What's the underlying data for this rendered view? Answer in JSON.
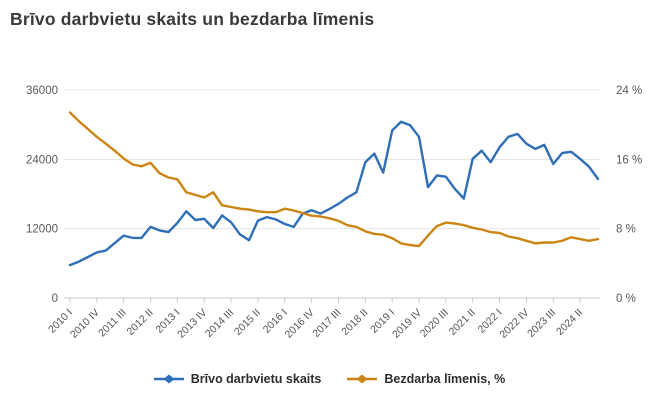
{
  "title": "Brīvo darbvietu skaits un bezdarba līmenis",
  "colors": {
    "vacancies_line": "#2f6fb7",
    "unemployment_line": "#cc8512",
    "gridline": "#e4e4e4",
    "axis_line": "#c8c8c8",
    "axis_text": "#595959",
    "title_text": "#3a3a3a",
    "background": "#ffffff"
  },
  "chart_data": {
    "type": "line",
    "title": "Brīvo darbvietu skaits un bezdarba līmenis",
    "grid": true,
    "legend_position": "bottom",
    "x_ticks": [
      {
        "label": "2010 I",
        "index": 0
      },
      {
        "label": "2010 IV",
        "index": 3
      },
      {
        "label": "2011 III",
        "index": 6
      },
      {
        "label": "2012 II",
        "index": 9
      },
      {
        "label": "2013 I",
        "index": 12
      },
      {
        "label": "2013 IV",
        "index": 15
      },
      {
        "label": "2014 III",
        "index": 18
      },
      {
        "label": "2015 II",
        "index": 21
      },
      {
        "label": "2016 I",
        "index": 24
      },
      {
        "label": "2016 IV",
        "index": 27
      },
      {
        "label": "2017 III",
        "index": 30
      },
      {
        "label": "2018 II",
        "index": 33
      },
      {
        "label": "2019 I",
        "index": 36
      },
      {
        "label": "2019 IV",
        "index": 39
      },
      {
        "label": "2020 III",
        "index": 42
      },
      {
        "label": "2021 II",
        "index": 45
      },
      {
        "label": "2022 I",
        "index": 48
      },
      {
        "label": "2022 IV",
        "index": 51
      },
      {
        "label": "2023 III",
        "index": 54
      },
      {
        "label": "2024 II",
        "index": 57
      }
    ],
    "categories": [
      "2010 I",
      "2010 II",
      "2010 III",
      "2010 IV",
      "2011 I",
      "2011 II",
      "2011 III",
      "2011 IV",
      "2012 I",
      "2012 II",
      "2012 III",
      "2012 IV",
      "2013 I",
      "2013 II",
      "2013 III",
      "2013 IV",
      "2014 I",
      "2014 II",
      "2014 III",
      "2014 IV",
      "2015 I",
      "2015 II",
      "2015 III",
      "2015 IV",
      "2016 I",
      "2016 II",
      "2016 III",
      "2016 IV",
      "2017 I",
      "2017 II",
      "2017 III",
      "2017 IV",
      "2018 I",
      "2018 II",
      "2018 III",
      "2018 IV",
      "2019 I",
      "2019 II",
      "2019 III",
      "2019 IV",
      "2020 I",
      "2020 II",
      "2020 III",
      "2020 IV",
      "2021 I",
      "2021 II",
      "2021 III",
      "2021 IV",
      "2022 I",
      "2022 II",
      "2022 III",
      "2022 IV",
      "2023 I",
      "2023 II",
      "2023 III",
      "2023 IV",
      "2024 I",
      "2024 II",
      "2024 III",
      "2024 IV"
    ],
    "series": [
      {
        "name": "Brīvo darbvietu skaits",
        "axis": "left",
        "color": "#2f6fb7",
        "values": [
          5700,
          6300,
          7100,
          7900,
          8200,
          9500,
          10800,
          10400,
          10400,
          12300,
          11700,
          11400,
          13000,
          15000,
          13500,
          13700,
          12100,
          14300,
          13100,
          11000,
          10000,
          13400,
          14000,
          13600,
          12800,
          12300,
          14600,
          15200,
          14600,
          15400,
          16300,
          17400,
          18300,
          23500,
          25000,
          21700,
          29000,
          30500,
          29900,
          27900,
          19200,
          21200,
          21000,
          18900,
          17200,
          24100,
          25500,
          23500,
          26100,
          27900,
          28400,
          26700,
          25800,
          26500,
          23200,
          25100,
          25300,
          24100,
          22700,
          20600
        ]
      },
      {
        "name": "Bezdarba līmenis, %",
        "axis": "right",
        "color": "#cc8512",
        "values": [
          21.4,
          20.4,
          19.5,
          18.6,
          17.8,
          17.0,
          16.1,
          15.4,
          15.2,
          15.6,
          14.4,
          13.9,
          13.7,
          12.2,
          11.9,
          11.6,
          12.2,
          10.7,
          10.5,
          10.3,
          10.2,
          10.0,
          9.9,
          9.9,
          10.3,
          10.1,
          9.8,
          9.5,
          9.4,
          9.2,
          8.9,
          8.4,
          8.2,
          7.7,
          7.4,
          7.3,
          6.9,
          6.3,
          6.1,
          6.0,
          7.2,
          8.3,
          8.7,
          8.6,
          8.4,
          8.1,
          7.9,
          7.6,
          7.5,
          7.1,
          6.9,
          6.6,
          6.3,
          6.4,
          6.4,
          6.6,
          7.0,
          6.8,
          6.6,
          6.8
        ]
      }
    ],
    "left_axis": {
      "min": 0,
      "max": 36000,
      "ticks": [
        {
          "label": "0",
          "value": 0
        },
        {
          "label": "12000",
          "value": 12000
        },
        {
          "label": "24000",
          "value": 24000
        },
        {
          "label": "36000",
          "value": 36000
        }
      ]
    },
    "right_axis": {
      "min": 0,
      "max": 24,
      "ticks": [
        {
          "label": "0 %",
          "value": 0
        },
        {
          "label": "8 %",
          "value": 8
        },
        {
          "label": "16 %",
          "value": 16
        },
        {
          "label": "24 %",
          "value": 24
        }
      ]
    }
  },
  "legend": {
    "items": [
      {
        "label": "Brīvo darbvietu skaits"
      },
      {
        "label": "Bezdarba līmenis, %"
      }
    ]
  }
}
